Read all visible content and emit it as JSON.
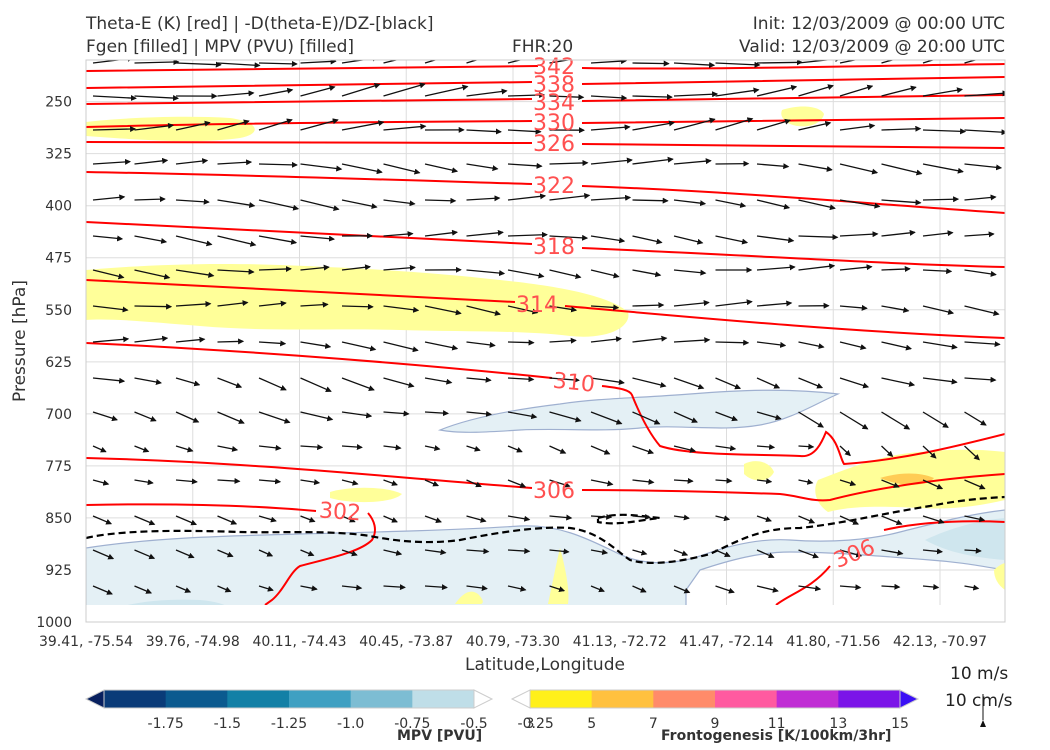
{
  "header": {
    "title_left_1": "Theta-E (K) [red] | -D(theta-E)/DZ-[black]",
    "title_left_2": "Fgen [filled] | MPV (PVU) [filled]",
    "fhr": "FHR:20",
    "init": "Init: 12/03/2009 @ 00:00 UTC",
    "valid": "Valid: 12/03/2009 @ 20:00 UTC"
  },
  "chart_data": {
    "type": "cross-section",
    "xlabel": "Latitude,Longitude",
    "ylabel": "Pressure [hPa]",
    "x_ticks": [
      "39.41, -75.54",
      "39.76, -74.98",
      "40.11, -74.43",
      "40.45, -73.87",
      "40.79, -73.30",
      "41.13, -72.72",
      "41.47, -72.14",
      "41.80, -71.56",
      "42.13, -70.97"
    ],
    "y_ticks": [
      250,
      325,
      400,
      475,
      550,
      625,
      700,
      775,
      850,
      925,
      1000
    ],
    "ylim": [
      1000,
      190
    ],
    "grid": true,
    "theta_e_contours": [
      {
        "value": 342,
        "label": "342"
      },
      {
        "value": 338,
        "label": "338"
      },
      {
        "value": 334,
        "label": "334"
      },
      {
        "value": 330,
        "label": "330"
      },
      {
        "value": 326,
        "label": "326"
      },
      {
        "value": 322,
        "label": "322"
      },
      {
        "value": 318,
        "label": "318"
      },
      {
        "value": 314,
        "label": "314"
      },
      {
        "value": 310,
        "label": "310"
      },
      {
        "value": 306,
        "label": "306"
      },
      {
        "value": 302,
        "label": "302"
      },
      {
        "value": 306,
        "label": "306"
      }
    ],
    "colors": {
      "theta_e": "#ff0000",
      "label": "#ff5050",
      "fgen_fill": "#ffff99",
      "mpv_fill": "#e4f0f5",
      "dthetae_dz": "#000000"
    }
  },
  "colorbars": {
    "mpv": {
      "label": "MPV [PVU]",
      "ticks": [
        "-1.75",
        "-1.5",
        "-1.25",
        "-1.0",
        "-0.75",
        "-0.5",
        "-0.25"
      ],
      "colors": [
        "#08205f",
        "#0a3b78",
        "#0b5a8f",
        "#1380a6",
        "#3fa0c2",
        "#7dbdd3",
        "#bfdee8",
        "#ffffff"
      ]
    },
    "fgen": {
      "label": "Frontogenesis [K/100km/3hr]",
      "ticks": [
        "3",
        "5",
        "7",
        "9",
        "11",
        "13",
        "15"
      ],
      "colors": [
        "#ffffff",
        "#fff01a",
        "#ffc13f",
        "#ff8b6a",
        "#ff5aa0",
        "#c02dd4",
        "#7b14e8",
        "#3a10f5"
      ]
    }
  },
  "wind_reference": {
    "horizontal": "10 m/s",
    "vertical": "10 cm/s"
  }
}
